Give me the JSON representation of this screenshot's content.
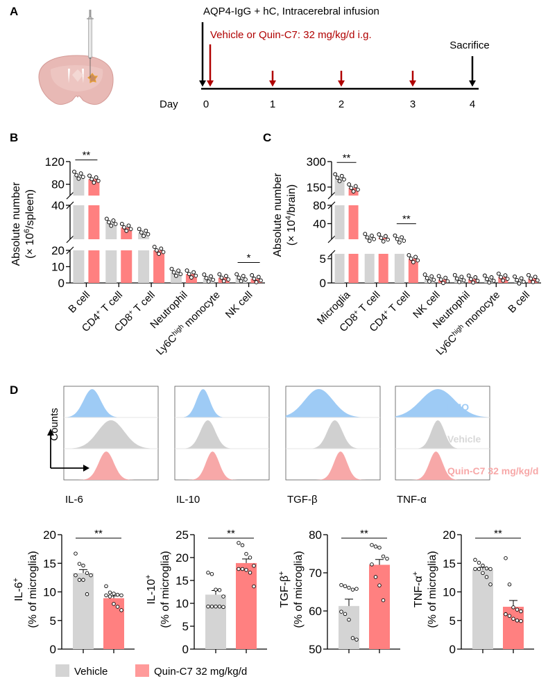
{
  "colors": {
    "vehicle": "#d4d4d4",
    "quin": "#ff8080",
    "fmo": "#9ecbf5",
    "hist_vehicle": "#d0d0d0",
    "hist_quin": "#f7a8a8",
    "dark_red": "#b00000",
    "legend_quin": "#ff9a9a"
  },
  "panel_labels": {
    "A": "A",
    "B": "B",
    "C": "C",
    "D": "D"
  },
  "panelA": {
    "title": "AQP4-IgG + hC, Intracerebral infusion",
    "treatment": "Vehicle or Quin-C7: 32 mg/kg/d i.g.",
    "sacrifice": "Sacrifice",
    "day_label": "Day",
    "days": [
      "0",
      "1",
      "2",
      "3",
      "4"
    ],
    "dose_days": [
      0,
      1,
      2,
      3
    ]
  },
  "chart_data": [
    {
      "id": "B",
      "type": "bar",
      "title": "",
      "ylabel_line1": "Absolute number",
      "ylabel_line2_pre": "(× 10",
      "ylabel_sup": "6",
      "ylabel_line2_post": "/spleen)",
      "categories": [
        {
          "main": "B cell",
          "sup": "",
          "post": ""
        },
        {
          "main": "CD4",
          "sup": "+",
          "post": " T cell"
        },
        {
          "main": "CD8",
          "sup": "+",
          "post": " T cell"
        },
        {
          "main": "Neutrophil",
          "sup": "",
          "post": ""
        },
        {
          "main": "Ly6C",
          "sup": "high",
          "post": " monocyte"
        },
        {
          "main": "NK cell",
          "sup": "",
          "post": ""
        }
      ],
      "axis_segments": [
        {
          "range": [
            0,
            20
          ],
          "ticks": [
            0,
            10,
            20
          ]
        },
        {
          "range": [
            20,
            40
          ],
          "ticks": [
            40
          ]
        },
        {
          "range": [
            60,
            120
          ],
          "ticks": [
            80,
            120
          ]
        }
      ],
      "series": [
        {
          "name": "Vehicle",
          "values": [
            96,
            30,
            24,
            6.5,
            3.0,
            3.2
          ]
        },
        {
          "name": "Quin-C7 32 mg/kg/d",
          "values": [
            89,
            27,
            20,
            5.5,
            3.2,
            2.6
          ]
        }
      ],
      "significance": [
        {
          "category": 0,
          "label": "**"
        },
        {
          "category": 5,
          "label": "*"
        }
      ]
    },
    {
      "id": "C",
      "type": "bar",
      "title": "",
      "ylabel_line1": "Absolute number",
      "ylabel_line2_pre": "(× 10",
      "ylabel_sup": "4",
      "ylabel_line2_post": "/brain)",
      "categories": [
        {
          "main": "Microglia",
          "sup": "",
          "post": ""
        },
        {
          "main": "CD8",
          "sup": "+",
          "post": " T cell"
        },
        {
          "main": "CD4",
          "sup": "+",
          "post": " T cell"
        },
        {
          "main": "NK cell",
          "sup": "",
          "post": ""
        },
        {
          "main": "Neutrophil",
          "sup": "",
          "post": ""
        },
        {
          "main": "Ly6C",
          "sup": "high",
          "post": " monocyte"
        },
        {
          "main": "B cell",
          "sup": "",
          "post": ""
        }
      ],
      "axis_segments": [
        {
          "range": [
            0,
            6
          ],
          "ticks": [
            0,
            5
          ]
        },
        {
          "range": [
            6,
            80
          ],
          "ticks": [
            40,
            80
          ]
        },
        {
          "range": [
            100,
            300
          ],
          "ticks": [
            150,
            300
          ]
        }
      ],
      "series": [
        {
          "name": "Vehicle",
          "values": [
            205,
            10,
            6.5,
            1.0,
            0.9,
            0.8,
            0.6
          ]
        },
        {
          "name": "Quin-C7 32 mg/kg/d",
          "values": [
            145,
            9,
            5.0,
            0.7,
            0.8,
            1.2,
            0.9
          ]
        }
      ],
      "significance": [
        {
          "category": 0,
          "label": "**"
        },
        {
          "category": 2,
          "label": "**"
        }
      ]
    },
    {
      "id": "D-IL6",
      "type": "bar",
      "ylabel_main": "IL-6",
      "ylabel_sup": "+",
      "ylabel_line2": "(% of microglia)",
      "ylim": [
        0,
        20
      ],
      "ticks": [
        0,
        5,
        10,
        15,
        20
      ],
      "categories": [
        "Vehicle",
        "Quin-C7 32 mg/kg/d"
      ],
      "values": [
        13.3,
        8.9
      ],
      "sem": [
        0.6,
        0.4
      ],
      "points": [
        [
          16.7,
          14.9,
          14.6,
          13.3,
          12.9,
          12.9,
          12.1,
          12.1,
          9.6
        ],
        [
          11.0,
          9.9,
          9.7,
          9.5,
          9.4,
          9.4,
          9.2,
          7.9,
          7.4,
          6.8
        ]
      ],
      "significance": "**"
    },
    {
      "id": "D-IL10",
      "type": "bar",
      "ylabel_main": "IL-10",
      "ylabel_sup": "+",
      "ylabel_line2": "(% of microglia)",
      "ylim": [
        0,
        25
      ],
      "ticks": [
        0,
        5,
        10,
        15,
        20,
        25
      ],
      "categories": [
        "Vehicle",
        "Quin-C7 32 mg/kg/d"
      ],
      "values": [
        11.9,
        18.8
      ],
      "sem": [
        0.9,
        0.9
      ],
      "points": [
        [
          16.7,
          16.4,
          13.0,
          12.9,
          11.5,
          9.3,
          9.3,
          9.3,
          9.3,
          9.2
        ],
        [
          23.2,
          22.7,
          20.8,
          20.0,
          18.2,
          17.5,
          17.5,
          17.3,
          16.7,
          13.7
        ]
      ],
      "significance": "**"
    },
    {
      "id": "D-TGFb",
      "type": "bar",
      "ylabel_main": "TGF-β",
      "ylabel_sup": "+",
      "ylabel_line2": "(% of microglia)",
      "ylim": [
        50,
        80
      ],
      "ticks": [
        50,
        60,
        70,
        80
      ],
      "categories": [
        "Vehicle",
        "Quin-C7 32 mg/kg/d"
      ],
      "values": [
        61.3,
        72.1
      ],
      "sem": [
        1.8,
        1.4
      ],
      "points": [
        [
          66.8,
          66.5,
          66.1,
          65.6,
          65.8,
          59.8,
          59.2,
          57.7,
          52.9,
          52.5
        ],
        [
          77.3,
          76.9,
          76.6,
          74.3,
          73.7,
          72.2,
          68.9,
          66.7,
          62.8
        ]
      ],
      "significance": "**"
    },
    {
      "id": "D-TNFa",
      "type": "bar",
      "ylabel_main": "TNF-α",
      "ylabel_sup": "+",
      "ylabel_line2": "(% of microglia)",
      "ylim": [
        0,
        20
      ],
      "ticks": [
        0,
        5,
        10,
        15,
        20
      ],
      "categories": [
        "Vehicle",
        "Quin-C7 32 mg/kg/d"
      ],
      "values": [
        13.9,
        7.4
      ],
      "sem": [
        0.4,
        1.1
      ],
      "points": [
        [
          15.6,
          15.1,
          14.6,
          14.1,
          14.0,
          14.0,
          14.0,
          13.3,
          12.6,
          11.3
        ],
        [
          15.9,
          11.3,
          7.3,
          6.9,
          6.6,
          6.1,
          5.8,
          5.3,
          5.0,
          4.9
        ]
      ],
      "significance": "**"
    }
  ],
  "histograms": {
    "markers": [
      "IL-6",
      "IL-10",
      "TGF-β",
      "TNF-α"
    ],
    "ylabel": "Counts",
    "rows": [
      "FMO",
      "Vehicle",
      "Quin-C7 32 mg/kg/d"
    ]
  },
  "legend": {
    "items": [
      "Vehicle",
      "Quin-C7 32 mg/kg/d"
    ]
  }
}
